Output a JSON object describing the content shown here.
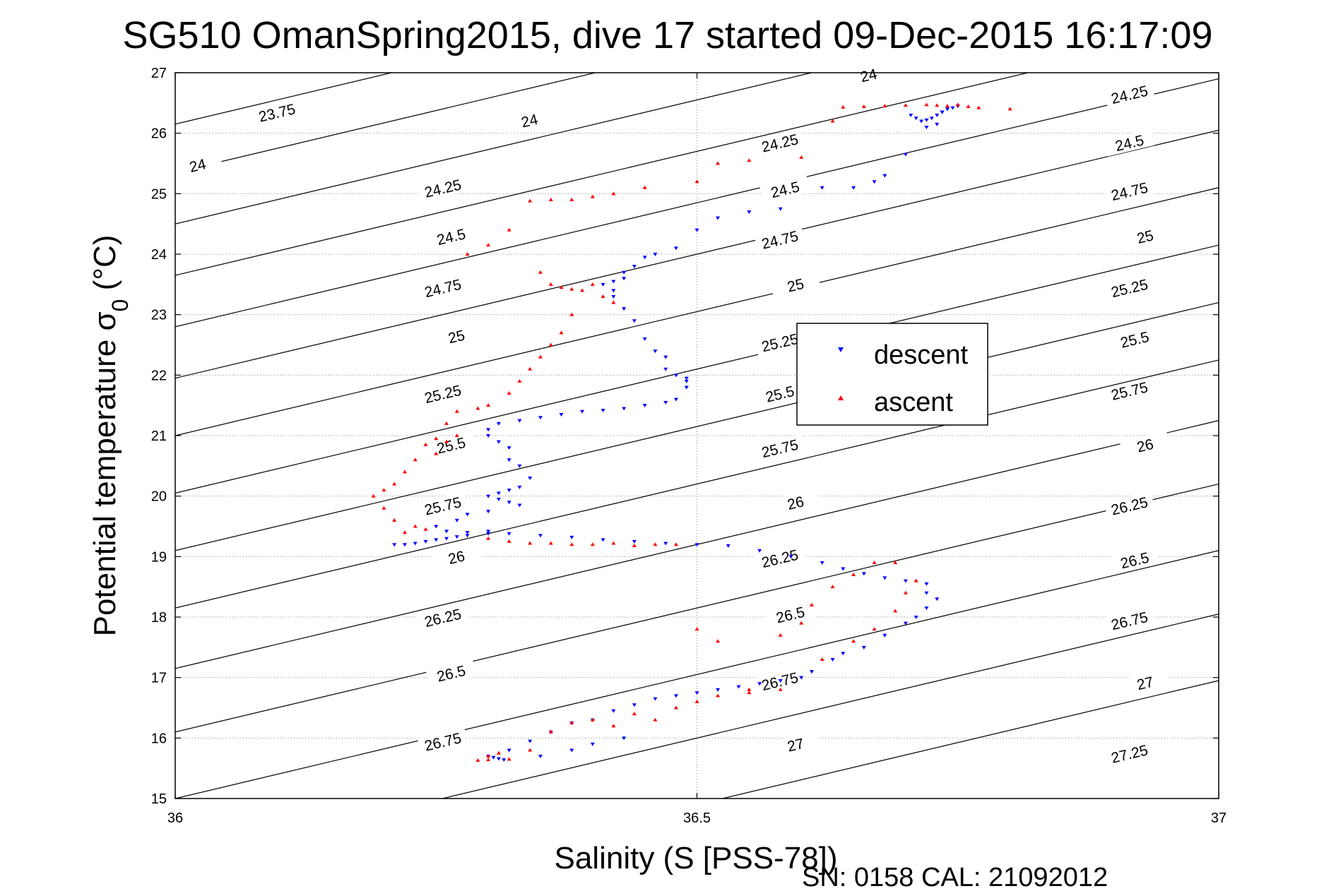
{
  "chart_data": {
    "type": "scatter",
    "title": "SG510 OmanSpring2015, dive 17 started 09-Dec-2015 16:17:09",
    "xlabel": "Salinity (S [PSS-78])",
    "ylabel_main": "Potential temperature σ",
    "ylabel_sub": "0",
    "ylabel_unit": " (°C)",
    "xlim": [
      36,
      37
    ],
    "ylim": [
      15,
      27
    ],
    "xticks": [
      36,
      36.5,
      37
    ],
    "xtick_labels": [
      "36",
      "36.5",
      "37"
    ],
    "yticks": [
      15,
      16,
      17,
      18,
      19,
      20,
      21,
      22,
      23,
      24,
      25,
      26,
      27
    ],
    "ytick_labels": [
      "15",
      "16",
      "17",
      "18",
      "19",
      "20",
      "21",
      "22",
      "23",
      "24",
      "25",
      "26",
      "27"
    ],
    "grid": "dotted",
    "legend_position": "center-right",
    "footer": "SN: 0158  CAL: 21092012",
    "density_contours": [
      {
        "label": "23.75",
        "y_left": 26.15,
        "slope": 4.1
      },
      {
        "label": "24",
        "y_left": 25.35,
        "slope": 4.1
      },
      {
        "label": "24.25",
        "y_left": 24.5,
        "slope": 4.1
      },
      {
        "label": "24.5",
        "y_left": 23.65,
        "slope": 4.1
      },
      {
        "label": "24.75",
        "y_left": 22.8,
        "slope": 4.1
      },
      {
        "label": "25",
        "y_left": 21.95,
        "slope": 4.1
      },
      {
        "label": "25.25",
        "y_left": 21.0,
        "slope": 4.1
      },
      {
        "label": "25.5",
        "y_left": 20.05,
        "slope": 4.1
      },
      {
        "label": "25.75",
        "y_left": 19.1,
        "slope": 4.1
      },
      {
        "label": "26",
        "y_left": 18.15,
        "slope": 4.1
      },
      {
        "label": "26.25",
        "y_left": 17.15,
        "slope": 4.1
      },
      {
        "label": "26.5",
        "y_left": 16.1,
        "slope": 4.1
      },
      {
        "label": "26.75",
        "y_left": 15.0,
        "slope": 4.1
      },
      {
        "label": "27",
        "y_left": 13.95,
        "slope": 4.1
      },
      {
        "label": "27.25",
        "y_left": 12.85,
        "slope": 4.1
      }
    ],
    "contour_labels": [
      {
        "text": "23.75",
        "x": 36.098,
        "y": 26.3
      },
      {
        "text": "24",
        "x": 36.022,
        "y": 25.43
      },
      {
        "text": "24.25",
        "x": 36.257,
        "y": 25.05
      },
      {
        "text": "24.5",
        "x": 36.265,
        "y": 24.25
      },
      {
        "text": "24.75",
        "x": 36.257,
        "y": 23.4
      },
      {
        "text": "25",
        "x": 36.27,
        "y": 22.6
      },
      {
        "text": "25.25",
        "x": 36.257,
        "y": 21.65
      },
      {
        "text": "25.5",
        "x": 36.265,
        "y": 20.8
      },
      {
        "text": "25.75",
        "x": 36.257,
        "y": 19.8
      },
      {
        "text": "26",
        "x": 36.27,
        "y": 18.95
      },
      {
        "text": "26.25",
        "x": 36.257,
        "y": 17.95
      },
      {
        "text": "26.5",
        "x": 36.265,
        "y": 17.03
      },
      {
        "text": "26.75",
        "x": 36.257,
        "y": 15.9
      },
      {
        "text": "24",
        "x": 36.34,
        "y": 26.17
      },
      {
        "text": "24.25",
        "x": 36.58,
        "y": 25.8
      },
      {
        "text": "24.5",
        "x": 36.585,
        "y": 25.03
      },
      {
        "text": "24.75",
        "x": 36.58,
        "y": 24.2
      },
      {
        "text": "25",
        "x": 36.595,
        "y": 23.45
      },
      {
        "text": "25.25",
        "x": 36.58,
        "y": 22.5
      },
      {
        "text": "25.5",
        "x": 36.58,
        "y": 21.65
      },
      {
        "text": "25.75",
        "x": 36.58,
        "y": 20.75
      },
      {
        "text": "26",
        "x": 36.595,
        "y": 19.85
      },
      {
        "text": "26.25",
        "x": 36.58,
        "y": 18.93
      },
      {
        "text": "26.5",
        "x": 36.59,
        "y": 18.0
      },
      {
        "text": "26.75",
        "x": 36.58,
        "y": 16.9
      },
      {
        "text": "27",
        "x": 36.595,
        "y": 15.85
      },
      {
        "text": "24",
        "x": 36.665,
        "y": 26.92
      },
      {
        "text": "24.25",
        "x": 36.915,
        "y": 26.6
      },
      {
        "text": "24.5",
        "x": 36.915,
        "y": 25.8
      },
      {
        "text": "24.75",
        "x": 36.915,
        "y": 25.0
      },
      {
        "text": "25",
        "x": 36.93,
        "y": 24.25
      },
      {
        "text": "25.25",
        "x": 36.915,
        "y": 23.4
      },
      {
        "text": "25.5",
        "x": 36.92,
        "y": 22.55
      },
      {
        "text": "25.75",
        "x": 36.915,
        "y": 21.7
      },
      {
        "text": "26",
        "x": 36.93,
        "y": 20.8
      },
      {
        "text": "26.25",
        "x": 36.915,
        "y": 19.8
      },
      {
        "text": "26.5",
        "x": 36.92,
        "y": 18.9
      },
      {
        "text": "26.75",
        "x": 36.915,
        "y": 17.9
      },
      {
        "text": "27",
        "x": 36.93,
        "y": 16.87
      },
      {
        "text": "27.25",
        "x": 36.915,
        "y": 15.7
      }
    ],
    "series": [
      {
        "name": "descent",
        "color": "#0000ff",
        "marker": "triangle-down",
        "x": [
          36.75,
          36.745,
          36.74,
          36.735,
          36.73,
          36.725,
          36.72,
          36.715,
          36.71,
          36.705,
          36.72,
          36.73,
          36.735,
          36.74,
          36.7,
          36.68,
          36.67,
          36.65,
          36.62,
          36.58,
          36.55,
          36.52,
          36.5,
          36.48,
          36.46,
          36.45,
          36.44,
          36.43,
          36.43,
          36.42,
          36.41,
          36.42,
          36.42,
          36.43,
          36.44,
          36.45,
          36.46,
          36.47,
          36.47,
          36.48,
          36.49,
          36.49,
          36.49,
          36.48,
          36.47,
          36.45,
          36.43,
          36.41,
          36.39,
          36.37,
          36.35,
          36.33,
          36.31,
          36.3,
          36.3,
          36.31,
          36.32,
          36.32,
          36.33,
          36.34,
          36.33,
          36.32,
          36.31,
          36.3,
          36.31,
          36.32,
          36.33,
          36.3,
          36.28,
          36.27,
          36.25,
          36.26,
          36.28,
          36.3,
          36.28,
          36.27,
          36.26,
          36.25,
          36.24,
          36.23,
          36.22,
          36.21,
          36.3,
          36.32,
          36.35,
          36.38,
          36.41,
          36.44,
          36.47,
          36.5,
          36.53,
          36.56,
          36.59,
          36.62,
          36.64,
          36.66,
          36.68,
          36.7,
          36.72,
          36.72,
          36.73,
          36.72,
          36.71,
          36.7,
          36.68,
          36.66,
          36.64,
          36.63,
          36.61,
          36.6,
          36.58,
          36.56,
          36.54,
          36.52,
          36.5,
          36.48,
          36.46,
          36.44,
          36.42,
          36.4,
          36.38,
          36.36,
          36.34,
          36.32,
          36.3,
          36.305,
          36.31,
          36.315,
          36.35,
          36.38,
          36.4,
          36.43
        ],
        "y": [
          26.45,
          26.42,
          26.4,
          26.35,
          26.3,
          26.25,
          26.22,
          26.2,
          26.25,
          26.3,
          26.1,
          26.15,
          26.35,
          26.4,
          25.65,
          25.3,
          25.2,
          25.1,
          25.1,
          24.75,
          24.7,
          24.6,
          24.4,
          24.1,
          24.0,
          23.95,
          23.8,
          23.7,
          23.6,
          23.55,
          23.5,
          23.4,
          23.3,
          23.1,
          22.9,
          22.6,
          22.4,
          22.3,
          22.1,
          22.0,
          21.95,
          21.9,
          21.8,
          21.6,
          21.55,
          21.5,
          21.45,
          21.42,
          21.4,
          21.35,
          21.3,
          21.25,
          21.2,
          21.1,
          21.0,
          20.9,
          20.8,
          20.6,
          20.5,
          20.3,
          20.15,
          20.1,
          20.05,
          20.0,
          19.95,
          19.9,
          19.85,
          19.75,
          19.7,
          19.6,
          19.5,
          19.42,
          19.4,
          19.38,
          19.35,
          19.33,
          19.3,
          19.28,
          19.25,
          19.22,
          19.2,
          19.2,
          19.42,
          19.38,
          19.35,
          19.32,
          19.28,
          19.25,
          19.22,
          19.2,
          19.18,
          19.1,
          19.0,
          18.9,
          18.8,
          18.72,
          18.65,
          18.6,
          18.55,
          18.4,
          18.3,
          18.15,
          18.0,
          17.9,
          17.7,
          17.5,
          17.4,
          17.3,
          17.1,
          17.0,
          16.95,
          16.9,
          16.85,
          16.8,
          16.75,
          16.7,
          16.65,
          16.55,
          16.45,
          16.3,
          16.25,
          16.1,
          15.95,
          15.8,
          15.7,
          15.68,
          15.66,
          15.64,
          15.7,
          15.8,
          15.9,
          16.0
        ]
      },
      {
        "name": "ascent",
        "color": "#ff0000",
        "marker": "triangle-up",
        "x": [
          36.72,
          36.73,
          36.74,
          36.75,
          36.76,
          36.7,
          36.68,
          36.66,
          36.64,
          36.8,
          36.77,
          36.63,
          36.6,
          36.55,
          36.52,
          36.5,
          36.45,
          36.42,
          36.4,
          36.38,
          36.36,
          36.34,
          36.32,
          36.3,
          36.28,
          36.35,
          36.36,
          36.37,
          36.38,
          36.39,
          36.4,
          36.41,
          36.42,
          36.38,
          36.37,
          36.36,
          36.35,
          36.34,
          36.33,
          36.32,
          36.3,
          36.29,
          36.27,
          36.26,
          36.25,
          36.24,
          36.23,
          36.22,
          36.21,
          36.2,
          36.19,
          36.2,
          36.21,
          36.22,
          36.23,
          36.24,
          36.25,
          36.26,
          36.27,
          36.3,
          36.32,
          36.34,
          36.36,
          36.38,
          36.4,
          36.42,
          36.44,
          36.46,
          36.48,
          36.5,
          36.52,
          36.55,
          36.58,
          36.62,
          36.65,
          36.67,
          36.69,
          36.7,
          36.71,
          36.69,
          36.67,
          36.65,
          36.63,
          36.61,
          36.6,
          36.58,
          36.55,
          36.52,
          36.5,
          36.48,
          36.46,
          36.44,
          36.42,
          36.4,
          36.38,
          36.36,
          36.34,
          36.32,
          36.3,
          36.29,
          36.3,
          36.31
        ],
        "y": [
          26.47,
          26.46,
          26.45,
          26.47,
          26.44,
          26.46,
          26.45,
          26.44,
          26.43,
          26.4,
          26.42,
          26.2,
          25.6,
          25.55,
          25.5,
          25.2,
          25.1,
          25.0,
          24.95,
          24.9,
          24.9,
          24.88,
          24.4,
          24.15,
          24.0,
          23.7,
          23.5,
          23.45,
          23.42,
          23.4,
          23.5,
          23.3,
          23.2,
          23.0,
          22.7,
          22.5,
          22.3,
          22.1,
          21.9,
          21.7,
          21.5,
          21.45,
          21.4,
          21.2,
          20.95,
          20.85,
          20.6,
          20.4,
          20.2,
          20.1,
          20.0,
          19.8,
          19.6,
          19.4,
          19.5,
          19.45,
          20.7,
          20.9,
          21.0,
          19.3,
          19.25,
          19.22,
          19.22,
          19.2,
          19.2,
          19.22,
          19.18,
          19.2,
          19.2,
          17.8,
          17.6,
          16.75,
          16.8,
          17.3,
          17.6,
          17.8,
          18.1,
          18.4,
          18.6,
          18.9,
          18.9,
          18.7,
          18.5,
          18.2,
          17.9,
          17.7,
          16.8,
          16.7,
          16.6,
          16.5,
          16.3,
          16.4,
          16.2,
          16.3,
          16.25,
          16.1,
          15.8,
          15.65,
          15.64,
          15.63,
          15.7,
          15.75
        ]
      }
    ]
  }
}
